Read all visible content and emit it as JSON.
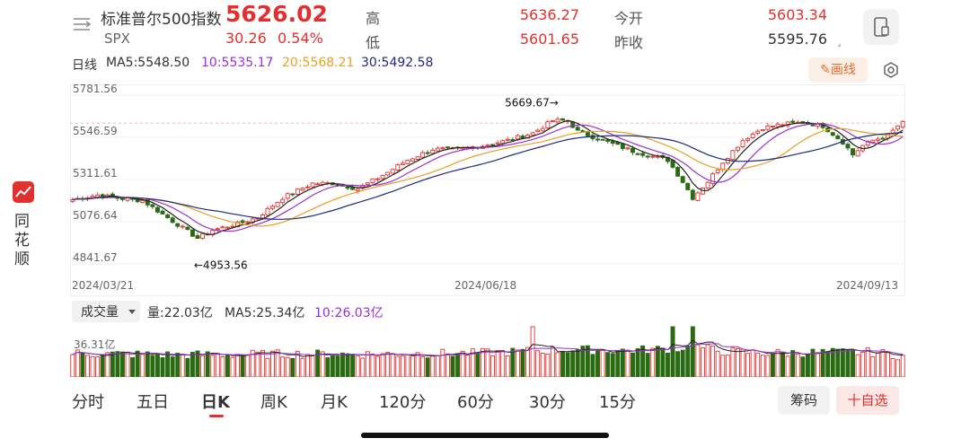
{
  "header": {
    "name": "标准普尔500指数",
    "price": "5626.02",
    "code": "SPX",
    "change": "30.26",
    "change_pct": "0.54%",
    "high_label": "高",
    "high": "5636.27",
    "low_label": "低",
    "low": "5601.65",
    "open_label": "今开",
    "open": "5603.34",
    "prev_label": "昨收",
    "prev_close": "5595.76",
    "share_icon": "phone-icon",
    "menu_icon": "menu-icon"
  },
  "ma_row": {
    "period": "日线",
    "ma5": "MA5:5548.50",
    "ma10": "10:5535.17",
    "ma20": "20:5568.21",
    "ma30": "30:5492.58",
    "draw_button": "画线",
    "settings_icon": "settings-icon"
  },
  "side_brand": {
    "chars": [
      "同",
      "花",
      "顺"
    ]
  },
  "volume_bar": {
    "selector": "成交量",
    "vol": "量:22.03亿",
    "ma5": "MA5:25.34亿",
    "ma10": "10:26.03亿"
  },
  "tabs": [
    "分时",
    "五日",
    "日K",
    "周K",
    "月K",
    "120分",
    "60分",
    "30分",
    "15分"
  ],
  "active_tab": "日K",
  "buttons": {
    "chips": "筹码",
    "add_watch": "十自选"
  },
  "colors": {
    "up": "#e0312e",
    "down": "#2a6a12",
    "ma5": "#222222",
    "ma10": "#9b30d0",
    "ma20": "#e8a020",
    "ma30": "#1f2a78"
  },
  "chart_data": {
    "type": "candlestick",
    "ylim": [
      4841.67,
      5781.56
    ],
    "y_ticks": [
      "5781.56",
      "5546.59",
      "5311.61",
      "5076.64",
      "4841.67"
    ],
    "x_ticks": [
      "2024/03/21",
      "2024/06/18",
      "2024/09/13"
    ],
    "annotations": [
      {
        "text": "5669.67→",
        "value": 5669.67,
        "index": 99
      },
      {
        "text": "←4953.56",
        "value": 4953.56,
        "index": 25
      }
    ],
    "ref_line": 5626.02,
    "close_anchors": [
      [
        0,
        5200
      ],
      [
        5,
        5225
      ],
      [
        10,
        5205
      ],
      [
        14,
        5195
      ],
      [
        20,
        5080
      ],
      [
        25,
        4985
      ],
      [
        28,
        5030
      ],
      [
        33,
        5065
      ],
      [
        37,
        5100
      ],
      [
        42,
        5210
      ],
      [
        48,
        5290
      ],
      [
        52,
        5290
      ],
      [
        57,
        5260
      ],
      [
        62,
        5335
      ],
      [
        67,
        5420
      ],
      [
        72,
        5480
      ],
      [
        77,
        5480
      ],
      [
        82,
        5500
      ],
      [
        87,
        5530
      ],
      [
        92,
        5570
      ],
      [
        96,
        5640
      ],
      [
        99,
        5640
      ],
      [
        101,
        5580
      ],
      [
        105,
        5540
      ],
      [
        109,
        5500
      ],
      [
        112,
        5470
      ],
      [
        116,
        5440
      ],
      [
        119,
        5420
      ],
      [
        122,
        5300
      ],
      [
        124,
        5210
      ],
      [
        127,
        5300
      ],
      [
        130,
        5410
      ],
      [
        134,
        5530
      ],
      [
        138,
        5600
      ],
      [
        142,
        5620
      ],
      [
        146,
        5630
      ],
      [
        150,
        5610
      ],
      [
        154,
        5520
      ],
      [
        156,
        5450
      ],
      [
        158,
        5500
      ],
      [
        160,
        5530
      ],
      [
        163,
        5556
      ],
      [
        165,
        5610
      ],
      [
        166,
        5626
      ]
    ],
    "vol_ylim": [
      0,
      60
    ],
    "vol_tick": "36.31亿",
    "vol_anchors": [
      [
        0,
        25
      ],
      [
        20,
        23
      ],
      [
        40,
        24
      ],
      [
        60,
        24
      ],
      [
        80,
        25
      ],
      [
        95,
        28
      ],
      [
        100,
        29
      ],
      [
        110,
        28
      ],
      [
        120,
        30
      ],
      [
        125,
        32
      ],
      [
        130,
        27
      ],
      [
        140,
        25
      ],
      [
        150,
        26
      ],
      [
        160,
        26
      ],
      [
        166,
        22
      ]
    ]
  }
}
